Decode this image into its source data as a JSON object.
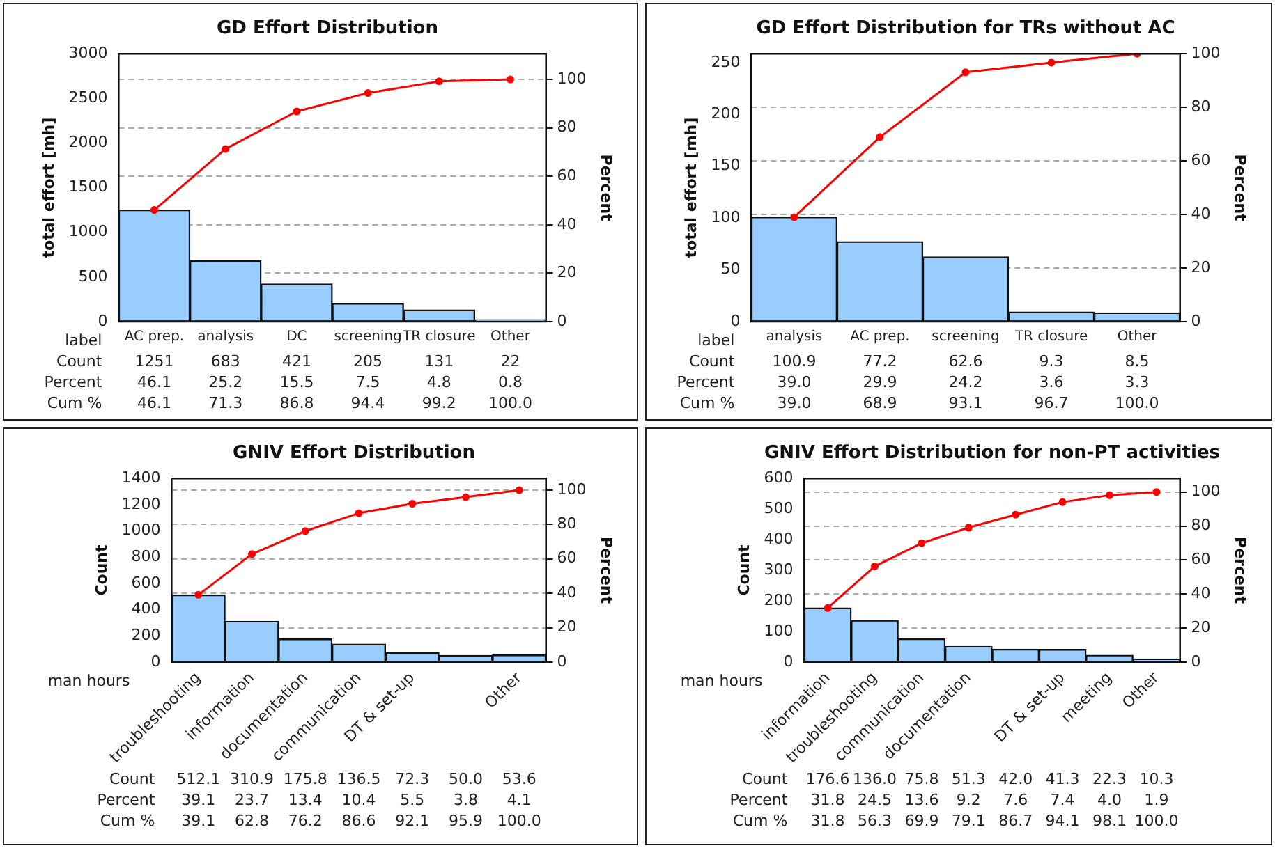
{
  "chart_data": [
    {
      "type": "bar",
      "title": "GD Effort Distribution",
      "ylabel": "total effort [mh]",
      "y2label": "Percent",
      "categories": [
        "AC prep.",
        "analysis",
        "DC",
        "screening",
        "TR closure",
        "Other"
      ],
      "series": [
        {
          "color": "#99ccff",
          "values": [
            1251,
            683,
            421,
            205,
            131,
            22
          ],
          "value_labels": [
            "1251",
            "683",
            "421",
            "205",
            "131",
            "22"
          ]
        },
        {
          "type": "line",
          "axis": "y2",
          "color": "#ff0000",
          "marker": "circle",
          "values": [
            46.1,
            71.3,
            86.8,
            94.4,
            99.2,
            100.0
          ],
          "value_labels": [
            "46.1",
            "71.3",
            "86.8",
            "94.4",
            "99.2",
            "100.0"
          ]
        }
      ],
      "ylim": [
        0,
        3000
      ],
      "yticks": [
        0,
        500,
        1000,
        1500,
        2000,
        2500,
        3000
      ],
      "y2lim": [
        0,
        110.6
      ],
      "y2ticks": [
        0,
        20,
        40,
        60,
        80,
        100
      ],
      "grid": true,
      "legend": false,
      "annotations": [
        "label",
        "Count",
        "Percent",
        "Cum %",
        "46.1",
        "25.2",
        "15.5",
        "7.5",
        "4.8",
        "0.8"
      ]
    },
    {
      "type": "bar",
      "title": "GD Effort Distribution for TRs without AC",
      "ylabel": "total effort [mh]",
      "y2label": "Percent",
      "categories": [
        "analysis",
        "AC prep.",
        "screening",
        "TR closure",
        "Other"
      ],
      "series": [
        {
          "color": "#99ccff",
          "values": [
            100.9,
            77.2,
            62.6,
            9.3,
            8.5
          ],
          "value_labels": [
            "100.9",
            "77.2",
            "62.6",
            "9.3",
            "8.5"
          ]
        },
        {
          "type": "line",
          "axis": "y2",
          "color": "#ff0000",
          "marker": "circle",
          "values": [
            39.0,
            68.9,
            93.1,
            96.7,
            100.0
          ],
          "value_labels": [
            "39.0",
            "68.9",
            "93.1",
            "96.7",
            "100.0"
          ]
        }
      ],
      "ylim": [
        0,
        258.5
      ],
      "yticks": [
        0,
        50,
        100,
        150,
        200,
        250
      ],
      "y2lim": [
        0,
        100
      ],
      "y2ticks": [
        0,
        20,
        40,
        60,
        80,
        100
      ],
      "grid": true,
      "legend": false,
      "annotations": [
        "label",
        "Count",
        "Percent",
        "Cum %",
        "39.0",
        "29.9",
        "24.2",
        "3.6",
        "3.3"
      ]
    },
    {
      "type": "bar",
      "title": "GNIV Effort Distribution",
      "ylabel": "Count",
      "y2label": "Percent",
      "categories": [
        "troubleshooting",
        "information",
        "documentation",
        "communication",
        "DT & set-up",
        null,
        "Other"
      ],
      "series": [
        {
          "color": "#99ccff",
          "values": [
            512.1,
            310.9,
            175.8,
            136.5,
            72.3,
            50.0,
            53.6
          ],
          "value_labels": [
            "512.1",
            "310.9",
            "175.8",
            "136.5",
            "72.3",
            "50.0",
            "53.6"
          ]
        },
        {
          "type": "line",
          "axis": "y2",
          "color": "#ff0000",
          "marker": "circle",
          "values": [
            39.1,
            62.8,
            76.2,
            86.6,
            92.1,
            95.9,
            100.0
          ],
          "value_labels": [
            "39.1",
            "62.8",
            "76.2",
            "86.6",
            "92.1",
            "95.9",
            "100.0"
          ]
        }
      ],
      "ylim": [
        0,
        1400
      ],
      "yticks": [
        0,
        200,
        400,
        600,
        800,
        1000,
        1200,
        1400
      ],
      "y2lim": [
        0,
        106.8
      ],
      "y2ticks": [
        0,
        20,
        40,
        60,
        80,
        100
      ],
      "grid": true,
      "legend": false,
      "annotations": [
        "man hours",
        "Count",
        "Percent",
        "Cum %",
        "39.1",
        "23.7",
        "13.4",
        "10.4",
        "5.5",
        "3.8",
        "4.1"
      ]
    },
    {
      "type": "bar",
      "title": "GNIV Effort Distribution for non-PT activities",
      "ylabel": "Count",
      "y2label": "Percent",
      "categories": [
        "information",
        "troubleshooting",
        "communication",
        "documentation",
        null,
        "DT & set-up",
        "meeting",
        "Other"
      ],
      "series": [
        {
          "color": "#99ccff",
          "values": [
            176.6,
            136.0,
            75.8,
            51.3,
            42.0,
            41.3,
            22.3,
            10.3
          ],
          "value_labels": [
            "176.6",
            "136.0",
            "75.8",
            "51.3",
            "42.0",
            "41.3",
            "22.3",
            "10.3"
          ]
        },
        {
          "type": "line",
          "axis": "y2",
          "color": "#ff0000",
          "marker": "circle",
          "values": [
            31.8,
            56.3,
            69.9,
            79.1,
            86.7,
            94.1,
            98.1,
            100.0
          ],
          "value_labels": [
            "31.8",
            "56.3",
            "69.9",
            "79.1",
            "86.7",
            "94.1",
            "98.1",
            "100.0"
          ]
        }
      ],
      "ylim": [
        0,
        600
      ],
      "yticks": [
        0,
        100,
        200,
        300,
        400,
        500,
        600
      ],
      "y2lim": [
        0,
        108
      ],
      "y2ticks": [
        0,
        20,
        40,
        60,
        80,
        100
      ],
      "grid": true,
      "legend": false,
      "annotations": [
        "man hours",
        "Count",
        "Percent",
        "Cum %",
        "31.8",
        "24.5",
        "13.6",
        "9.2",
        "7.6",
        "7.4",
        "4.0",
        "1.9"
      ]
    }
  ]
}
